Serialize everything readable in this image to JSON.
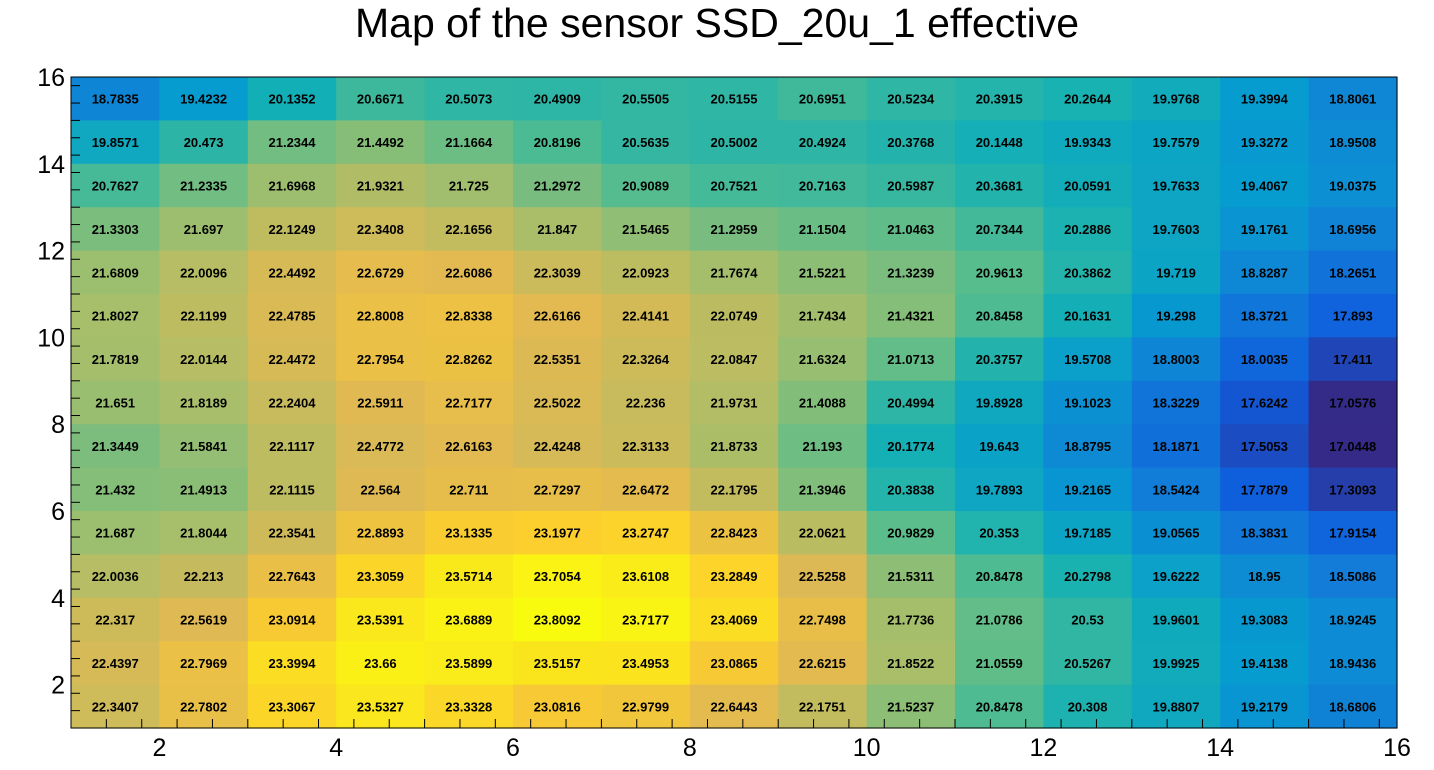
{
  "chart_data": {
    "type": "heatmap",
    "title": "Map of the sensor SSD_20u_1 effective",
    "xlabel": "",
    "ylabel": "",
    "xlim": [
      1,
      16
    ],
    "ylim": [
      1,
      16
    ],
    "x_ticks": [
      2,
      4,
      6,
      8,
      10,
      12,
      14,
      16
    ],
    "y_ticks": [
      2,
      4,
      6,
      8,
      10,
      12,
      14,
      16
    ],
    "x_bins": [
      1,
      2,
      3,
      4,
      5,
      6,
      7,
      8,
      9,
      10,
      11,
      12,
      13,
      14,
      15,
      16
    ],
    "y_bins": [
      1,
      2,
      3,
      4,
      5,
      6,
      7,
      8,
      9,
      10,
      11,
      12,
      13,
      14,
      15,
      16
    ],
    "value_min": 17.0448,
    "value_max": 23.8092,
    "rows_top_to_bottom": [
      [
        "18.7835",
        "19.4232",
        "20.1352",
        "20.6671",
        "20.5073",
        "20.4909",
        "20.5505",
        "20.5155",
        "20.6951",
        "20.5234",
        "20.3915",
        "20.2644",
        "19.9768",
        "19.3994",
        "18.8061"
      ],
      [
        "19.8571",
        "20.473",
        "21.2344",
        "21.4492",
        "21.1664",
        "20.8196",
        "20.5635",
        "20.5002",
        "20.4924",
        "20.3768",
        "20.1448",
        "19.9343",
        "19.7579",
        "19.3272",
        "18.9508"
      ],
      [
        "20.7627",
        "21.2335",
        "21.6968",
        "21.9321",
        "21.725",
        "21.2972",
        "20.9089",
        "20.7521",
        "20.7163",
        "20.5987",
        "20.3681",
        "20.0591",
        "19.7633",
        "19.4067",
        "19.0375"
      ],
      [
        "21.3303",
        "21.697",
        "22.1249",
        "22.3408",
        "22.1656",
        "21.847",
        "21.5465",
        "21.2959",
        "21.1504",
        "21.0463",
        "20.7344",
        "20.2886",
        "19.7603",
        "19.1761",
        "18.6956"
      ],
      [
        "21.6809",
        "22.0096",
        "22.4492",
        "22.6729",
        "22.6086",
        "22.3039",
        "22.0923",
        "21.7674",
        "21.5221",
        "21.3239",
        "20.9613",
        "20.3862",
        "19.719",
        "18.8287",
        "18.2651"
      ],
      [
        "21.8027",
        "22.1199",
        "22.4785",
        "22.8008",
        "22.8338",
        "22.6166",
        "22.4141",
        "22.0749",
        "21.7434",
        "21.4321",
        "20.8458",
        "20.1631",
        "19.298",
        "18.3721",
        "17.893"
      ],
      [
        "21.7819",
        "22.0144",
        "22.4472",
        "22.7954",
        "22.8262",
        "22.5351",
        "22.3264",
        "22.0847",
        "21.6324",
        "21.0713",
        "20.3757",
        "19.5708",
        "18.8003",
        "18.0035",
        "17.411"
      ],
      [
        "21.651",
        "21.8189",
        "22.2404",
        "22.5911",
        "22.7177",
        "22.5022",
        "22.236",
        "21.9731",
        "21.4088",
        "20.4994",
        "19.8928",
        "19.1023",
        "18.3229",
        "17.6242",
        "17.0576"
      ],
      [
        "21.3449",
        "21.5841",
        "22.1117",
        "22.4772",
        "22.6163",
        "22.4248",
        "22.3133",
        "21.8733",
        "21.193",
        "20.1774",
        "19.643",
        "18.8795",
        "18.1871",
        "17.5053",
        "17.0448"
      ],
      [
        "21.432",
        "21.4913",
        "22.1115",
        "22.564",
        "22.711",
        "22.7297",
        "22.6472",
        "22.1795",
        "21.3946",
        "20.3838",
        "19.7893",
        "19.2165",
        "18.5424",
        "17.7879",
        "17.3093"
      ],
      [
        "21.687",
        "21.8044",
        "22.3541",
        "22.8893",
        "23.1335",
        "23.1977",
        "23.2747",
        "22.8423",
        "22.0621",
        "20.9829",
        "20.353",
        "19.7185",
        "19.0565",
        "18.3831",
        "17.9154"
      ],
      [
        "22.0036",
        "22.213",
        "22.7643",
        "23.3059",
        "23.5714",
        "23.7054",
        "23.6108",
        "23.2849",
        "22.5258",
        "21.5311",
        "20.8478",
        "20.2798",
        "19.6222",
        "18.95",
        "18.5086"
      ],
      [
        "22.317",
        "22.5619",
        "23.0914",
        "23.5391",
        "23.6889",
        "23.8092",
        "23.7177",
        "23.4069",
        "22.7498",
        "21.7736",
        "21.0786",
        "20.53",
        "19.9601",
        "19.3083",
        "18.9245"
      ],
      [
        "22.4397",
        "22.7969",
        "23.3994",
        "23.66",
        "23.5899",
        "23.5157",
        "23.4953",
        "23.0865",
        "22.6215",
        "21.8522",
        "21.0559",
        "20.5267",
        "19.9925",
        "19.4138",
        "18.9436"
      ],
      [
        "22.3407",
        "22.7802",
        "23.3067",
        "23.5327",
        "23.3328",
        "23.0816",
        "22.9799",
        "22.6443",
        "22.1751",
        "21.5237",
        "20.8478",
        "20.308",
        "19.8807",
        "19.2179",
        "18.6806"
      ]
    ],
    "colormap": "parula",
    "grid": false,
    "legend": "none"
  }
}
